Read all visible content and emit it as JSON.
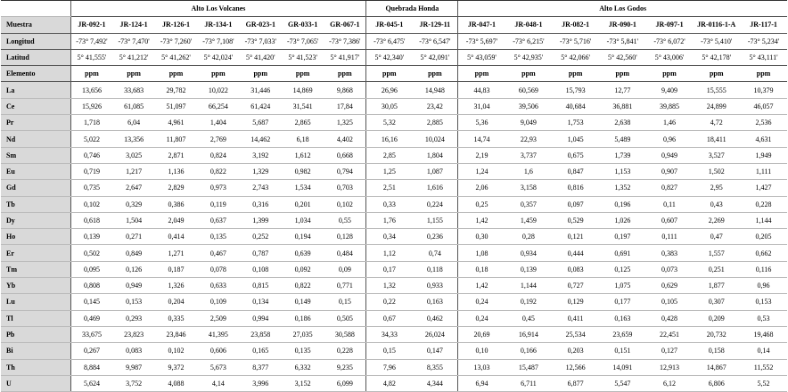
{
  "labels": {
    "muestra": "Muestra",
    "longitud": "Longitud",
    "latitud": "Latitud",
    "elemento": "Elemento"
  },
  "groups": [
    {
      "title": "Alto Los Volcanes",
      "samples": [
        {
          "id": "JR-092-1",
          "longitud": "-73° 7,492'",
          "latitud": "5° 41,555'",
          "unit": "ppm"
        },
        {
          "id": "JR-124-1",
          "longitud": "-73° 7,470'",
          "latitud": "5° 41,212'",
          "unit": "ppm"
        },
        {
          "id": "JR-126-1",
          "longitud": "-73° 7,260'",
          "latitud": "5° 41,262'",
          "unit": "ppm"
        },
        {
          "id": "JR-134-1",
          "longitud": "-73° 7,108'",
          "latitud": "5° 42,024'",
          "unit": "ppm"
        },
        {
          "id": "GR-023-1",
          "longitud": "-73° 7,033'",
          "latitud": "5° 41,420'",
          "unit": "ppm"
        },
        {
          "id": "GR-033-1",
          "longitud": "-73° 7,065'",
          "latitud": "5° 41,523'",
          "unit": "ppm"
        },
        {
          "id": "GR-067-1",
          "longitud": "-73° 7,386'",
          "latitud": "5° 41,917'",
          "unit": "ppm"
        }
      ]
    },
    {
      "title": "Quebrada Honda",
      "samples": [
        {
          "id": "JR-045-1",
          "longitud": "-73° 6,475'",
          "latitud": "5° 42,340'",
          "unit": "ppm"
        },
        {
          "id": "JR-129-11",
          "longitud": "-73° 6,547'",
          "latitud": "5° 42,091'",
          "unit": "ppm"
        }
      ]
    },
    {
      "title": "Alto Los Godos",
      "samples": [
        {
          "id": "JR-047-1",
          "longitud": "-73° 5,697'",
          "latitud": "5° 43,059'",
          "unit": "ppm"
        },
        {
          "id": "JR-048-1",
          "longitud": "-73° 6,215'",
          "latitud": "5° 42,935'",
          "unit": "ppm"
        },
        {
          "id": "JR-082-1",
          "longitud": "-73° 5,716'",
          "latitud": "5° 42,066'",
          "unit": "ppm"
        },
        {
          "id": "JR-090-1",
          "longitud": "-73° 5,841'",
          "latitud": "5° 42,560'",
          "unit": "ppm"
        },
        {
          "id": "JR-097-1",
          "longitud": "-73° 6,072'",
          "latitud": "5° 43,006'",
          "unit": "ppm"
        },
        {
          "id": "JR-0116-1-A",
          "longitud": "-73° 5,410'",
          "latitud": "5° 42,178'",
          "unit": "ppm"
        },
        {
          "id": "JR-117-1",
          "longitud": "-73° 5,234'",
          "latitud": "5° 43,111'",
          "unit": "ppm"
        }
      ]
    }
  ],
  "rows": [
    {
      "element": "La",
      "values": [
        "13,656",
        "33,683",
        "29,782",
        "10,022",
        "31,446",
        "14,869",
        "9,868",
        "26,96",
        "14,948",
        "44,83",
        "60,569",
        "15,793",
        "12,77",
        "9,409",
        "15,555",
        "10,379"
      ]
    },
    {
      "element": "Ce",
      "values": [
        "15,926",
        "61,085",
        "51,097",
        "66,254",
        "61,424",
        "31,541",
        "17,84",
        "30,05",
        "23,42",
        "31,04",
        "39,506",
        "40,684",
        "36,881",
        "39,885",
        "24,899",
        "46,057"
      ]
    },
    {
      "element": "Pr",
      "values": [
        "1,718",
        "6,04",
        "4,961",
        "1,404",
        "5,687",
        "2,865",
        "1,325",
        "5,32",
        "2,885",
        "5,36",
        "9,049",
        "1,753",
        "2,638",
        "1,46",
        "4,72",
        "2,536"
      ]
    },
    {
      "element": "Nd",
      "values": [
        "5,022",
        "13,356",
        "11,807",
        "2,769",
        "14,462",
        "6,18",
        "4,402",
        "16,16",
        "10,024",
        "14,74",
        "22,93",
        "1,045",
        "5,489",
        "0,96",
        "18,411",
        "4,631"
      ]
    },
    {
      "element": "Sm",
      "values": [
        "0,746",
        "3,025",
        "2,871",
        "0,824",
        "3,192",
        "1,612",
        "0,668",
        "2,85",
        "1,804",
        "2,19",
        "3,737",
        "0,675",
        "1,739",
        "0,949",
        "3,527",
        "1,949"
      ]
    },
    {
      "element": "Eu",
      "values": [
        "0,719",
        "1,217",
        "1,136",
        "0,822",
        "1,329",
        "0,982",
        "0,794",
        "1,25",
        "1,087",
        "1,24",
        "1,6",
        "0,847",
        "1,153",
        "0,907",
        "1,502",
        "1,111"
      ]
    },
    {
      "element": "Gd",
      "values": [
        "0,735",
        "2,647",
        "2,829",
        "0,973",
        "2,743",
        "1,534",
        "0,703",
        "2,51",
        "1,616",
        "2,06",
        "3,158",
        "0,816",
        "1,352",
        "0,827",
        "2,95",
        "1,427"
      ]
    },
    {
      "element": "Tb",
      "values": [
        "0,102",
        "0,329",
        "0,386",
        "0,119",
        "0,316",
        "0,201",
        "0,102",
        "0,33",
        "0,224",
        "0,25",
        "0,357",
        "0,097",
        "0,196",
        "0,11",
        "0,43",
        "0,228"
      ]
    },
    {
      "element": "Dy",
      "values": [
        "0,618",
        "1,504",
        "2,049",
        "0,637",
        "1,399",
        "1,034",
        "0,55",
        "1,76",
        "1,155",
        "1,42",
        "1,459",
        "0,529",
        "1,026",
        "0,607",
        "2,269",
        "1,144"
      ]
    },
    {
      "element": "Ho",
      "values": [
        "0,139",
        "0,271",
        "0,414",
        "0,135",
        "0,252",
        "0,194",
        "0,128",
        "0,34",
        "0,236",
        "0,30",
        "0,28",
        "0,121",
        "0,197",
        "0,111",
        "0,47",
        "0,205"
      ]
    },
    {
      "element": "Er",
      "values": [
        "0,502",
        "0,849",
        "1,271",
        "0,467",
        "0,787",
        "0,639",
        "0,484",
        "1,12",
        "0,74",
        "1,08",
        "0,934",
        "0,444",
        "0,691",
        "0,383",
        "1,557",
        "0,662"
      ]
    },
    {
      "element": "Tm",
      "values": [
        "0,095",
        "0,126",
        "0,187",
        "0,078",
        "0,108",
        "0,092",
        "0,09",
        "0,17",
        "0,118",
        "0,18",
        "0,139",
        "0,083",
        "0,125",
        "0,073",
        "0,251",
        "0,116"
      ]
    },
    {
      "element": "Yb",
      "values": [
        "0,808",
        "0,949",
        "1,326",
        "0,633",
        "0,815",
        "0,822",
        "0,771",
        "1,32",
        "0,933",
        "1,42",
        "1,144",
        "0,727",
        "1,075",
        "0,629",
        "1,877",
        "0,96"
      ]
    },
    {
      "element": "Lu",
      "values": [
        "0,145",
        "0,153",
        "0,204",
        "0,109",
        "0,134",
        "0,149",
        "0,15",
        "0,22",
        "0,163",
        "0,24",
        "0,192",
        "0,129",
        "0,177",
        "0,105",
        "0,307",
        "0,153"
      ]
    },
    {
      "element": "Tl",
      "values": [
        "0,469",
        "0,293",
        "0,335",
        "2,509",
        "0,994",
        "0,186",
        "0,505",
        "0,67",
        "0,462",
        "0,24",
        "0,45",
        "0,411",
        "0,163",
        "0,428",
        "0,209",
        "0,53"
      ]
    },
    {
      "element": "Pb",
      "values": [
        "33,675",
        "23,823",
        "23,846",
        "41,395",
        "23,858",
        "27,035",
        "30,588",
        "34,33",
        "26,024",
        "20,69",
        "16,914",
        "25,534",
        "23,659",
        "22,451",
        "20,732",
        "19,468"
      ]
    },
    {
      "element": "Bi",
      "values": [
        "0,267",
        "0,083",
        "0,102",
        "0,606",
        "0,165",
        "0,135",
        "0,228",
        "0,15",
        "0,147",
        "0,10",
        "0,166",
        "0,203",
        "0,151",
        "0,127",
        "0,158",
        "0,14"
      ]
    },
    {
      "element": "Th",
      "values": [
        "8,884",
        "9,987",
        "9,372",
        "5,673",
        "8,377",
        "6,332",
        "9,235",
        "7,96",
        "8,355",
        "13,03",
        "15,487",
        "12,566",
        "14,091",
        "12,913",
        "14,867",
        "11,552"
      ]
    },
    {
      "element": "U",
      "values": [
        "5,624",
        "3,752",
        "4,088",
        "4,14",
        "3,996",
        "3,152",
        "6,099",
        "4,82",
        "4,344",
        "6,94",
        "6,711",
        "6,877",
        "5,547",
        "6,12",
        "6,806",
        "5,52"
      ]
    }
  ]
}
